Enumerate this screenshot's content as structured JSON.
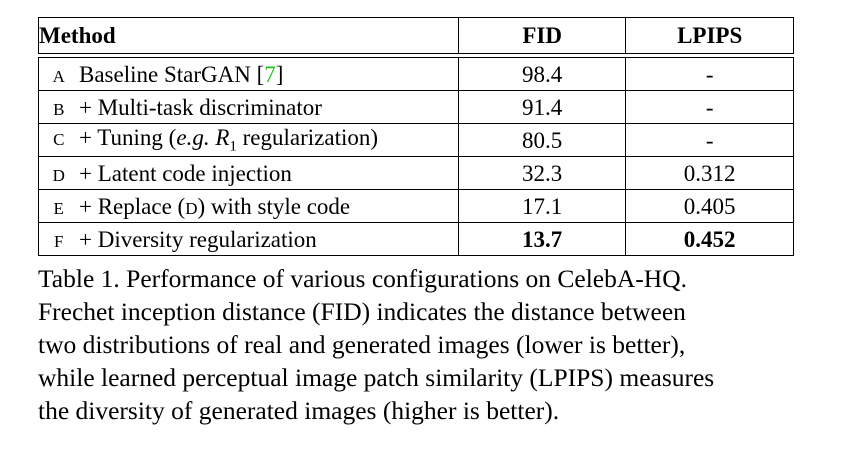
{
  "table": {
    "headers": {
      "method": "Method",
      "fid": "FID",
      "lpips": "LPIPS"
    },
    "rows": [
      {
        "id": "A",
        "method": "Baseline StarGAN [",
        "cite": "7",
        "method_end": "]",
        "fid": "98.4",
        "lpips": "-"
      },
      {
        "id": "B",
        "method": "+ Multi-task discriminator",
        "fid": "91.4",
        "lpips": "-"
      },
      {
        "id": "C",
        "method_pre": "+ Tuning (",
        "method_em": "e.g.",
        "method_mid": " ",
        "method_var": "R",
        "method_sub": "1",
        "method_post": " regularization)",
        "fid": "80.5",
        "lpips": "-"
      },
      {
        "id": "D",
        "method": "+ Latent code injection",
        "fid": "32.3",
        "lpips": "0.312"
      },
      {
        "id": "E",
        "method_pre": "+ Replace (",
        "method_sc": "D",
        "method_post": ") with style code",
        "fid": "17.1",
        "lpips": "0.405"
      },
      {
        "id": "F",
        "method": "+ Diversity regularization",
        "fid": "13.7",
        "lpips": "0.452"
      }
    ]
  },
  "caption": {
    "lines": [
      "Table 1. Performance of various configurations on CelebA-HQ.",
      "Frechet inception distance (FID) indicates the distance between",
      "two distributions of real and generated images (lower is better),",
      "while learned perceptual image patch similarity (LPIPS) measures",
      "the diversity of generated images (higher is better)."
    ]
  }
}
